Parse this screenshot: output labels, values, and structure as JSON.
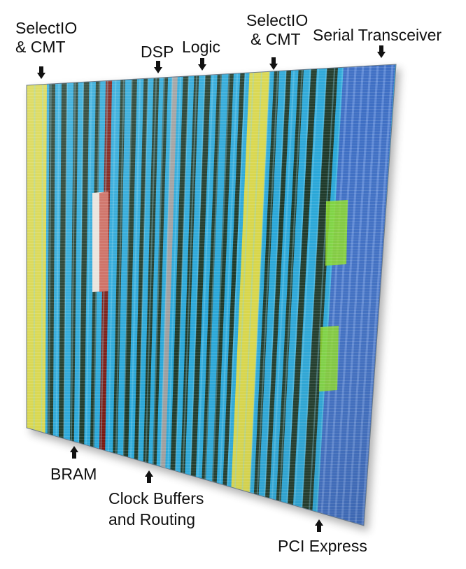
{
  "labels": {
    "selectio_left_line1": "SelectIO",
    "selectio_left_line2": "& CMT",
    "dsp": "DSP",
    "logic": "Logic",
    "selectio_right_line1": "SelectIO",
    "selectio_right_line2": "& CMT",
    "serial_transceiver": "Serial Transceiver",
    "bram": "BRAM",
    "clock_line1": "Clock Buffers",
    "clock_line2": "and Routing",
    "pci_express": "PCI Express"
  },
  "colors": {
    "selectio": "#d8d64a",
    "logic": "#2aa7d8",
    "routing": "#1f3a2a",
    "dsp": "#9e9e9e",
    "bram": "#7a1a12",
    "transceiver": "#3f6fc4",
    "pci_express": "#8edc2a"
  }
}
